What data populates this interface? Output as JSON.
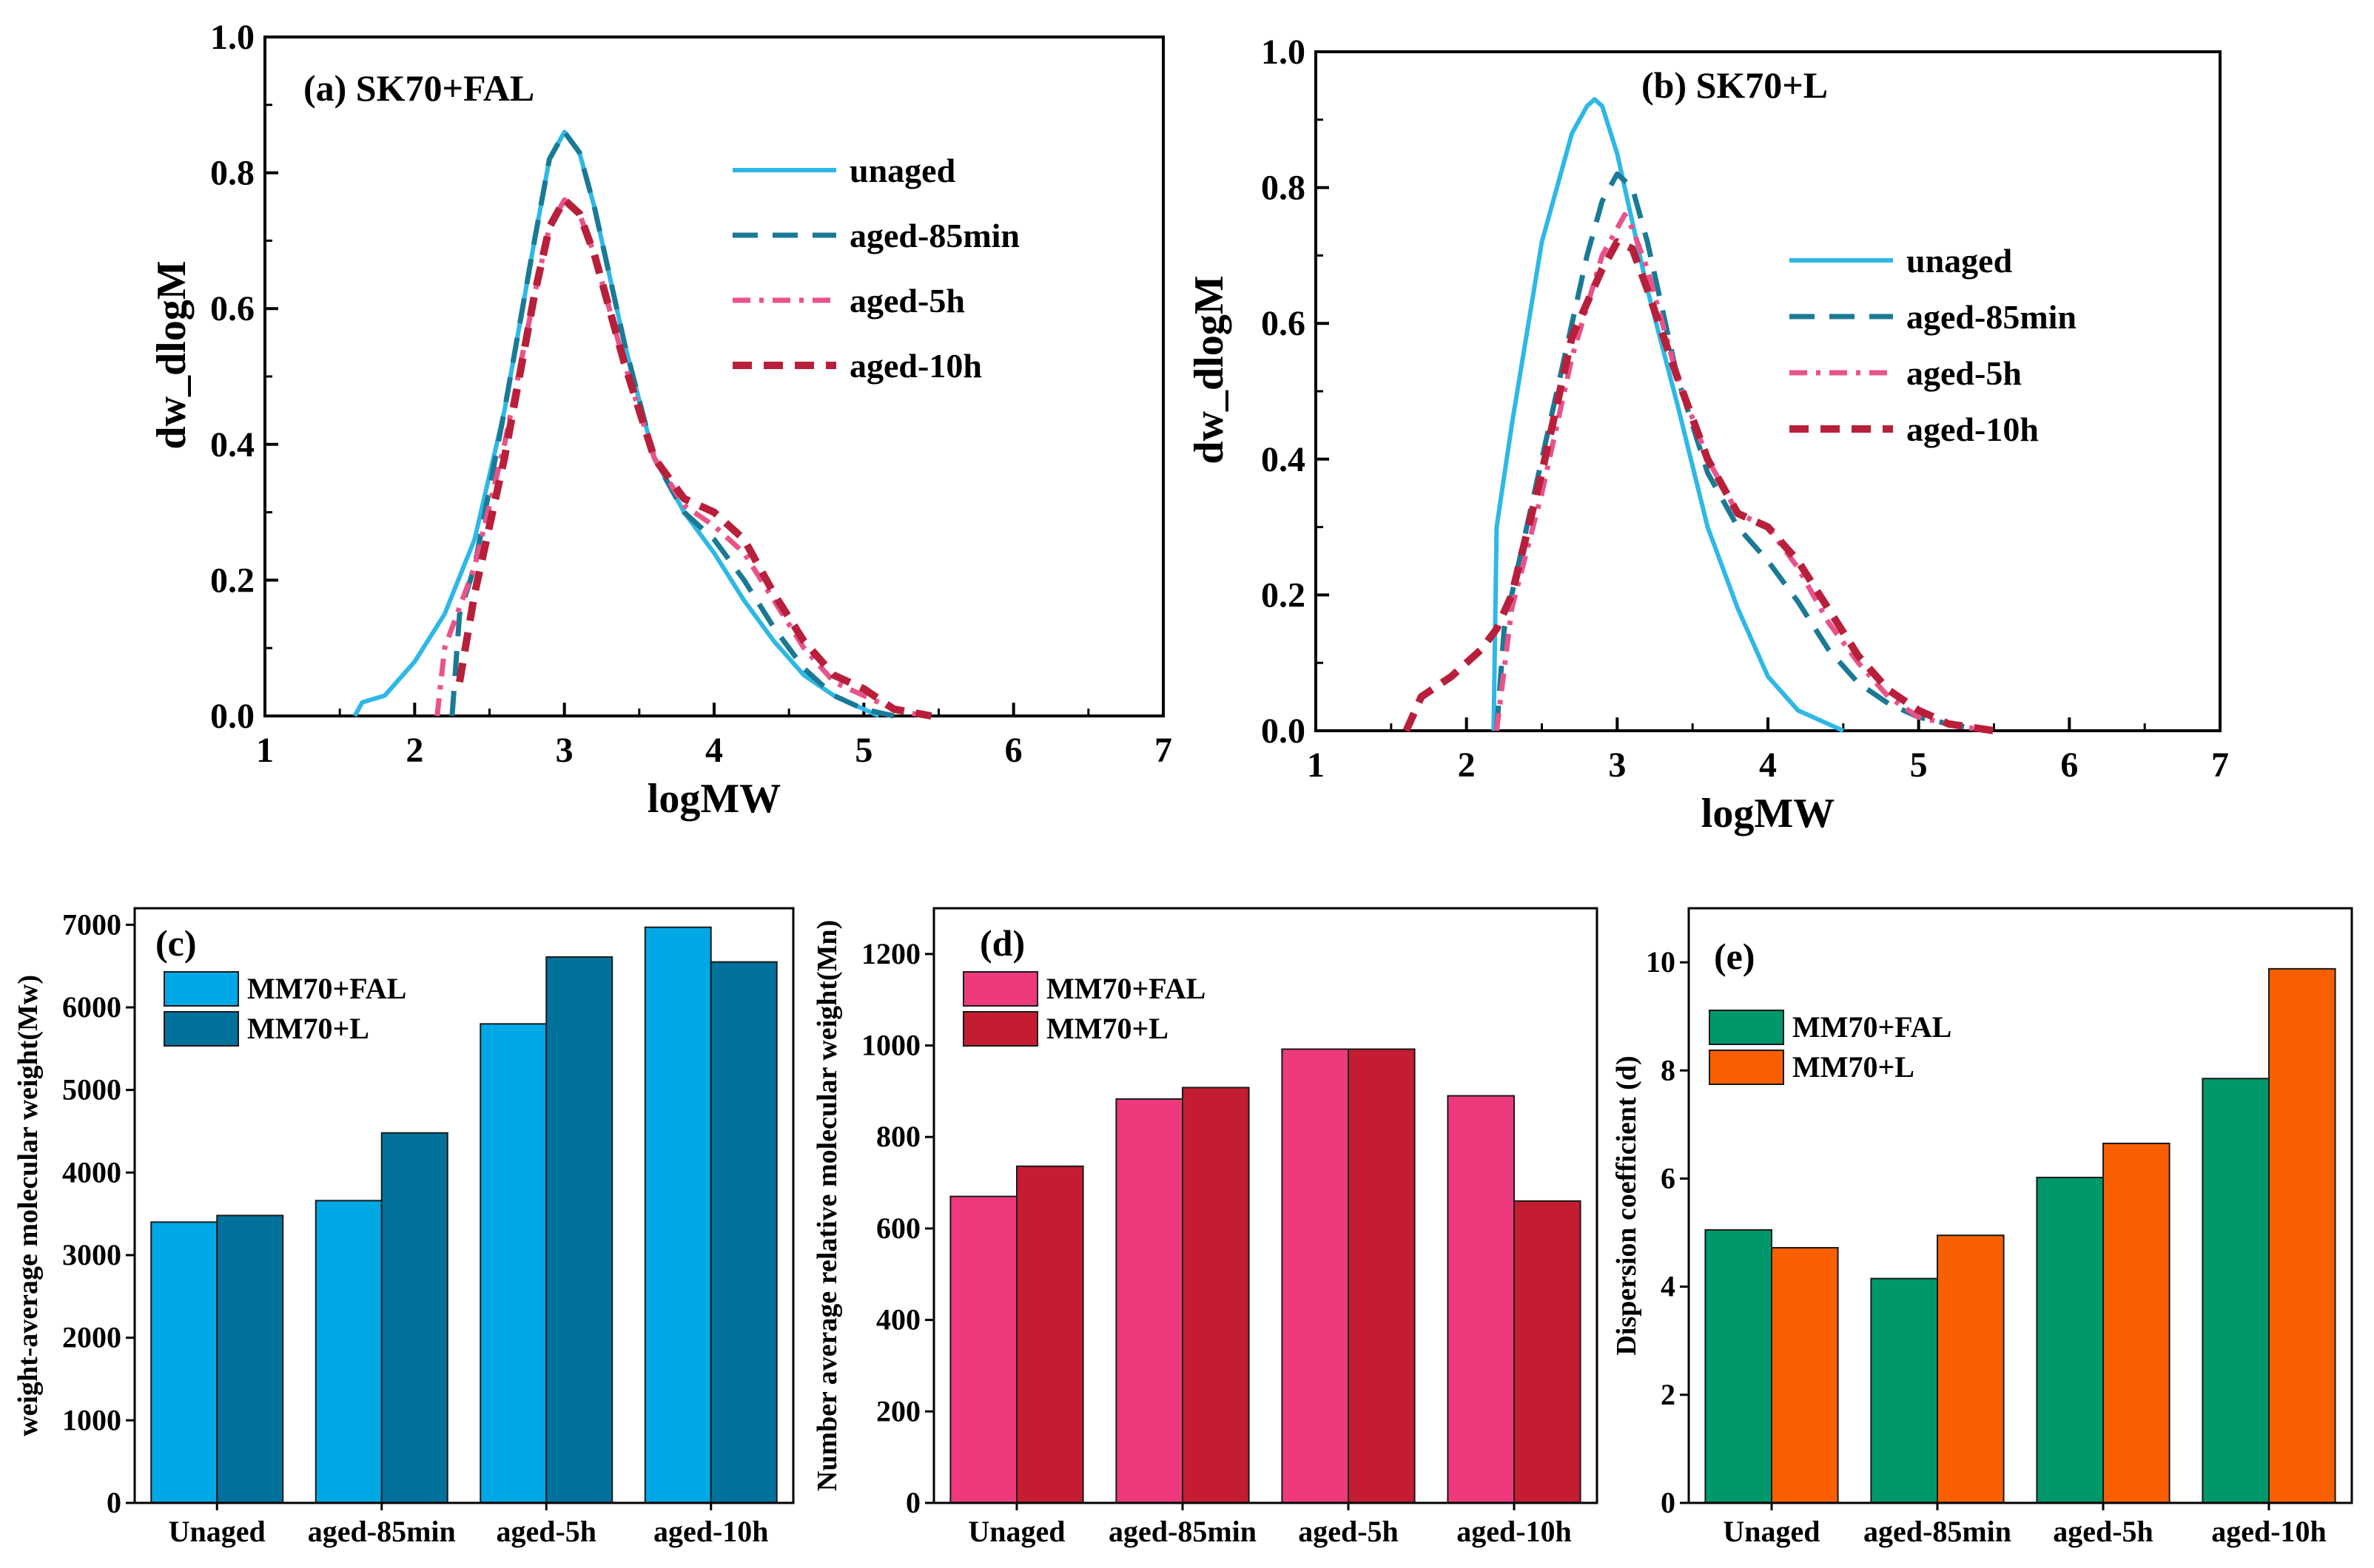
{
  "chart_data": [
    {
      "id": "a",
      "type": "line",
      "title": "(a) SK70+FAL",
      "xlabel": "logMW",
      "ylabel": "dw_dlogM",
      "xlim": [
        1,
        7
      ],
      "ylim": [
        0,
        1.0
      ],
      "xticks": [
        "1",
        "2",
        "3",
        "4",
        "5",
        "6",
        "7"
      ],
      "yticks": [
        "0.0",
        "0.2",
        "0.4",
        "0.6",
        "0.8",
        "1.0"
      ],
      "legend_position": "upper-right",
      "series": [
        {
          "name": "unaged",
          "color": "#2eb8e6",
          "dash": "solid",
          "x": [
            1.6,
            1.65,
            1.8,
            2.0,
            2.2,
            2.4,
            2.6,
            2.8,
            2.9,
            3.0,
            3.1,
            3.2,
            3.4,
            3.6,
            3.8,
            4.0,
            4.2,
            4.4,
            4.6,
            4.8,
            5.0,
            5.1
          ],
          "y": [
            0.0,
            0.02,
            0.03,
            0.08,
            0.15,
            0.26,
            0.45,
            0.7,
            0.82,
            0.86,
            0.83,
            0.75,
            0.55,
            0.38,
            0.3,
            0.24,
            0.17,
            0.11,
            0.06,
            0.03,
            0.01,
            0.0
          ]
        },
        {
          "name": "aged-85min",
          "color": "#1a7a96",
          "dash": "long",
          "x": [
            2.25,
            2.3,
            2.4,
            2.6,
            2.8,
            2.9,
            3.0,
            3.1,
            3.2,
            3.4,
            3.6,
            3.8,
            4.0,
            4.2,
            4.4,
            4.6,
            4.8,
            5.0,
            5.2
          ],
          "y": [
            0.0,
            0.15,
            0.22,
            0.45,
            0.7,
            0.82,
            0.86,
            0.83,
            0.75,
            0.55,
            0.38,
            0.3,
            0.26,
            0.2,
            0.13,
            0.07,
            0.03,
            0.01,
            0.0
          ]
        },
        {
          "name": "aged-5h",
          "color": "#e8538a",
          "dash": "dashdot",
          "x": [
            2.15,
            2.2,
            2.4,
            2.6,
            2.8,
            2.9,
            3.0,
            3.1,
            3.2,
            3.4,
            3.6,
            3.8,
            4.0,
            4.2,
            4.4,
            4.6,
            4.8,
            5.0,
            5.2,
            5.4
          ],
          "y": [
            0.0,
            0.1,
            0.22,
            0.4,
            0.62,
            0.72,
            0.76,
            0.74,
            0.68,
            0.52,
            0.38,
            0.31,
            0.28,
            0.24,
            0.17,
            0.1,
            0.05,
            0.03,
            0.01,
            0.0
          ]
        },
        {
          "name": "aged-10h",
          "color": "#b81f3a",
          "dash": "thick",
          "x": [
            2.3,
            2.4,
            2.6,
            2.8,
            2.9,
            3.0,
            3.1,
            3.2,
            3.4,
            3.6,
            3.8,
            4.0,
            4.2,
            4.4,
            4.6,
            4.8,
            5.0,
            5.2,
            5.45
          ],
          "y": [
            0.05,
            0.18,
            0.38,
            0.62,
            0.72,
            0.76,
            0.74,
            0.68,
            0.52,
            0.38,
            0.32,
            0.3,
            0.26,
            0.18,
            0.11,
            0.06,
            0.04,
            0.01,
            0.0
          ]
        }
      ]
    },
    {
      "id": "b",
      "type": "line",
      "title": "(b) SK70+L",
      "xlabel": "logMW",
      "ylabel": "dw_dlogM",
      "xlim": [
        1,
        7
      ],
      "ylim": [
        0,
        1.0
      ],
      "xticks": [
        "1",
        "2",
        "3",
        "4",
        "5",
        "6",
        "7"
      ],
      "yticks": [
        "0.0",
        "0.2",
        "0.4",
        "0.6",
        "0.8",
        "1.0"
      ],
      "legend_position": "right",
      "series": [
        {
          "name": "unaged",
          "color": "#2eb8e6",
          "dash": "solid",
          "x": [
            2.18,
            2.2,
            2.3,
            2.5,
            2.7,
            2.8,
            2.85,
            2.9,
            3.0,
            3.2,
            3.4,
            3.6,
            3.8,
            4.0,
            4.2,
            4.4,
            4.5
          ],
          "y": [
            0.0,
            0.3,
            0.45,
            0.72,
            0.88,
            0.92,
            0.93,
            0.92,
            0.85,
            0.65,
            0.48,
            0.3,
            0.18,
            0.08,
            0.03,
            0.01,
            0.0
          ]
        },
        {
          "name": "aged-85min",
          "color": "#1a7a96",
          "dash": "long",
          "x": [
            2.2,
            2.25,
            2.4,
            2.6,
            2.8,
            2.9,
            3.0,
            3.1,
            3.2,
            3.4,
            3.6,
            3.8,
            4.0,
            4.2,
            4.4,
            4.6,
            4.8,
            5.0,
            5.2,
            5.45
          ],
          "y": [
            0.0,
            0.15,
            0.3,
            0.5,
            0.7,
            0.78,
            0.82,
            0.8,
            0.72,
            0.52,
            0.38,
            0.3,
            0.25,
            0.19,
            0.12,
            0.07,
            0.04,
            0.02,
            0.01,
            0.0
          ]
        },
        {
          "name": "aged-5h",
          "color": "#e8538a",
          "dash": "dashdot",
          "x": [
            2.2,
            2.3,
            2.5,
            2.7,
            2.9,
            3.0,
            3.05,
            3.1,
            3.2,
            3.4,
            3.6,
            3.8,
            4.0,
            4.2,
            4.4,
            4.6,
            4.8,
            5.0,
            5.2,
            5.45
          ],
          "y": [
            0.0,
            0.18,
            0.35,
            0.55,
            0.7,
            0.74,
            0.76,
            0.74,
            0.68,
            0.52,
            0.4,
            0.32,
            0.3,
            0.24,
            0.16,
            0.1,
            0.05,
            0.02,
            0.01,
            0.0
          ]
        },
        {
          "name": "aged-10h",
          "color": "#b81f3a",
          "dash": "thick",
          "x": [
            1.6,
            1.7,
            1.9,
            2.1,
            2.2,
            2.3,
            2.5,
            2.7,
            2.9,
            3.0,
            3.1,
            3.2,
            3.4,
            3.6,
            3.8,
            4.0,
            4.2,
            4.4,
            4.6,
            4.8,
            5.0,
            5.2,
            5.5
          ],
          "y": [
            0.0,
            0.05,
            0.08,
            0.12,
            0.15,
            0.2,
            0.38,
            0.58,
            0.68,
            0.72,
            0.71,
            0.65,
            0.52,
            0.4,
            0.32,
            0.3,
            0.25,
            0.18,
            0.11,
            0.06,
            0.03,
            0.01,
            0.0
          ]
        }
      ]
    },
    {
      "id": "c",
      "type": "bar",
      "title": "(c)",
      "xlabel": "",
      "ylabel": "weight-average molecular weight(Mw)",
      "ylim": [
        0,
        7200
      ],
      "yticks": [
        "0",
        "1000",
        "2000",
        "3000",
        "4000",
        "5000",
        "6000",
        "7000"
      ],
      "categories": [
        "Unaged",
        "aged-85min",
        "aged-5h",
        "aged-10h"
      ],
      "series": [
        {
          "name": "MM70+FAL",
          "color": "#00a8e6",
          "values": [
            3400,
            3660,
            5800,
            6970
          ]
        },
        {
          "name": "MM70+L",
          "color": "#00729c",
          "values": [
            3480,
            4480,
            6610,
            6550
          ]
        }
      ]
    },
    {
      "id": "d",
      "type": "bar",
      "title": "(d)",
      "xlabel": "",
      "ylabel": "Number average relative molecular weight(Mn)",
      "ylim": [
        0,
        1300
      ],
      "yticks": [
        "0",
        "200",
        "400",
        "600",
        "800",
        "1000",
        "1200"
      ],
      "categories": [
        "Unaged",
        "aged-85min",
        "aged-5h",
        "aged-10h"
      ],
      "series": [
        {
          "name": "MM70+FAL",
          "color": "#ee3a7c",
          "values": [
            670,
            883,
            992,
            890
          ]
        },
        {
          "name": "MM70+L",
          "color": "#c41d32",
          "values": [
            736,
            908,
            992,
            660
          ]
        }
      ]
    },
    {
      "id": "e",
      "type": "bar",
      "title": "(e)",
      "xlabel": "",
      "ylabel": "Dispersion coefficient (d)",
      "ylim": [
        0,
        11
      ],
      "yticks": [
        "0",
        "2",
        "4",
        "6",
        "8",
        "10"
      ],
      "categories": [
        "Unaged",
        "aged-85min",
        "aged-5h",
        "aged-10h"
      ],
      "series": [
        {
          "name": "MM70+FAL",
          "color": "#00986a",
          "values": [
            5.05,
            4.15,
            6.02,
            7.85
          ]
        },
        {
          "name": "MM70+L",
          "color": "#f75f00",
          "values": [
            4.72,
            4.95,
            6.65,
            9.88
          ]
        }
      ]
    }
  ]
}
